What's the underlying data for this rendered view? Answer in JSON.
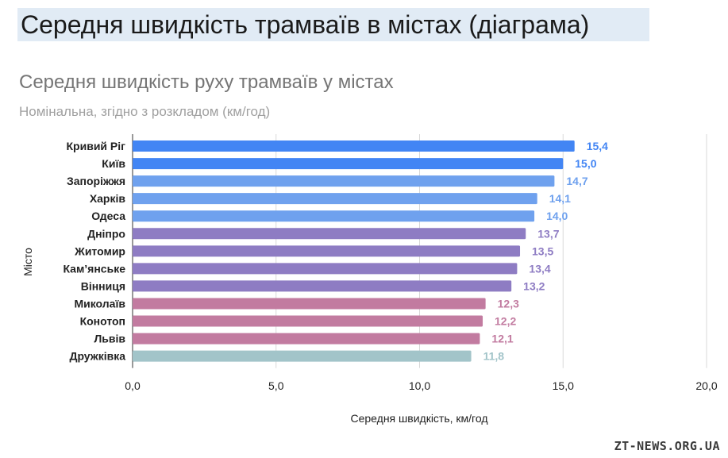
{
  "page": {
    "heading": "Середня швидкість трамваїв в містах (діаграма)",
    "watermark": "ZT-NEWS.ORG.UA"
  },
  "chart_data": {
    "type": "bar",
    "orientation": "horizontal",
    "title": "Середня швидкість руху трамваїв у містах",
    "subtitle": "Номінальна, згідно з розкладом (км/год)",
    "xlabel": "Середня швидкість, км/год",
    "ylabel": "Місто",
    "xlim": [
      0,
      20
    ],
    "xticks": [
      "0,0",
      "5,0",
      "10,0",
      "15,0",
      "20,0"
    ],
    "grid": "vertical",
    "legend": "none",
    "categories": [
      "Кривий Ріг",
      "Київ",
      "Запоріжжя",
      "Харків",
      "Одеса",
      "Дніпро",
      "Житомир",
      "Кам’янське",
      "Вінниця",
      "Миколаїв",
      "Конотоп",
      "Львів",
      "Дружківка"
    ],
    "values": [
      15.4,
      15.0,
      14.7,
      14.1,
      14.0,
      13.7,
      13.5,
      13.4,
      13.2,
      12.3,
      12.2,
      12.1,
      11.8
    ],
    "value_labels": [
      "15,4",
      "15,0",
      "14,7",
      "14,1",
      "14,0",
      "13,7",
      "13,5",
      "13,4",
      "13,2",
      "12,3",
      "12,2",
      "12,1",
      "11,8"
    ],
    "bar_colors": [
      "#4285f4",
      "#4285f4",
      "#6fa1ee",
      "#6fa1ee",
      "#6fa1ee",
      "#8e7cc3",
      "#8e7cc3",
      "#8e7cc3",
      "#8e7cc3",
      "#c27ba0",
      "#c27ba0",
      "#c27ba0",
      "#a2c4c9"
    ]
  }
}
